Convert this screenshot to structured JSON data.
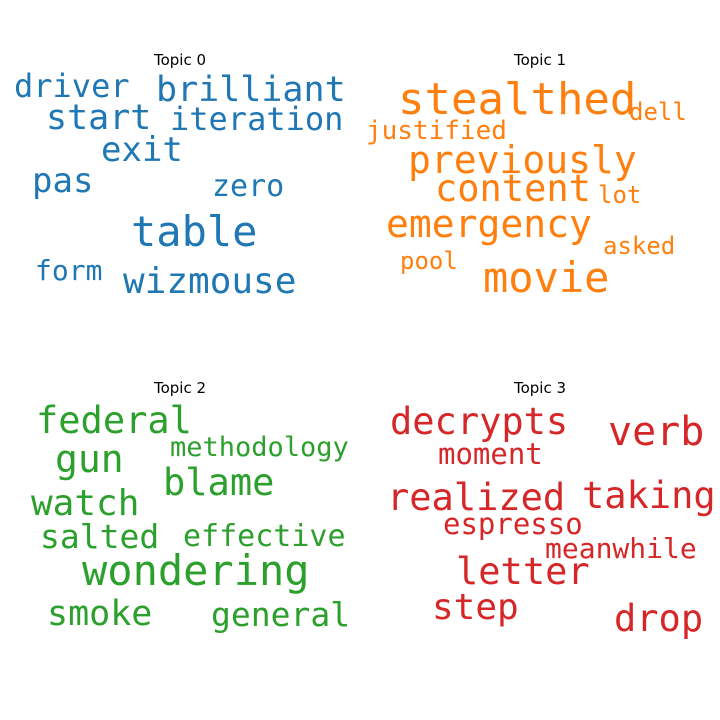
{
  "chart_data": [
    {
      "type": "wordcloud",
      "title": "Topic 0",
      "color": "#1f77b4",
      "words": [
        "brilliant",
        "driver",
        "start",
        "iteration",
        "exit",
        "pas",
        "zero",
        "table",
        "form",
        "wizmouse"
      ]
    },
    {
      "type": "wordcloud",
      "title": "Topic 1",
      "color": "#ff7f0e",
      "words": [
        "stealthed",
        "dell",
        "justified",
        "previously",
        "content",
        "lot",
        "emergency",
        "asked",
        "pool",
        "movie"
      ]
    },
    {
      "type": "wordcloud",
      "title": "Topic 2",
      "color": "#2ca02c",
      "words": [
        "federal",
        "methodology",
        "gun",
        "blame",
        "watch",
        "salted",
        "effective",
        "wondering",
        "smoke",
        "general"
      ]
    },
    {
      "type": "wordcloud",
      "title": "Topic 3",
      "color": "#d62728",
      "words": [
        "decrypts",
        "verb",
        "moment",
        "realized",
        "taking",
        "espresso",
        "meanwhile",
        "letter",
        "step",
        "drop"
      ]
    }
  ]
}
